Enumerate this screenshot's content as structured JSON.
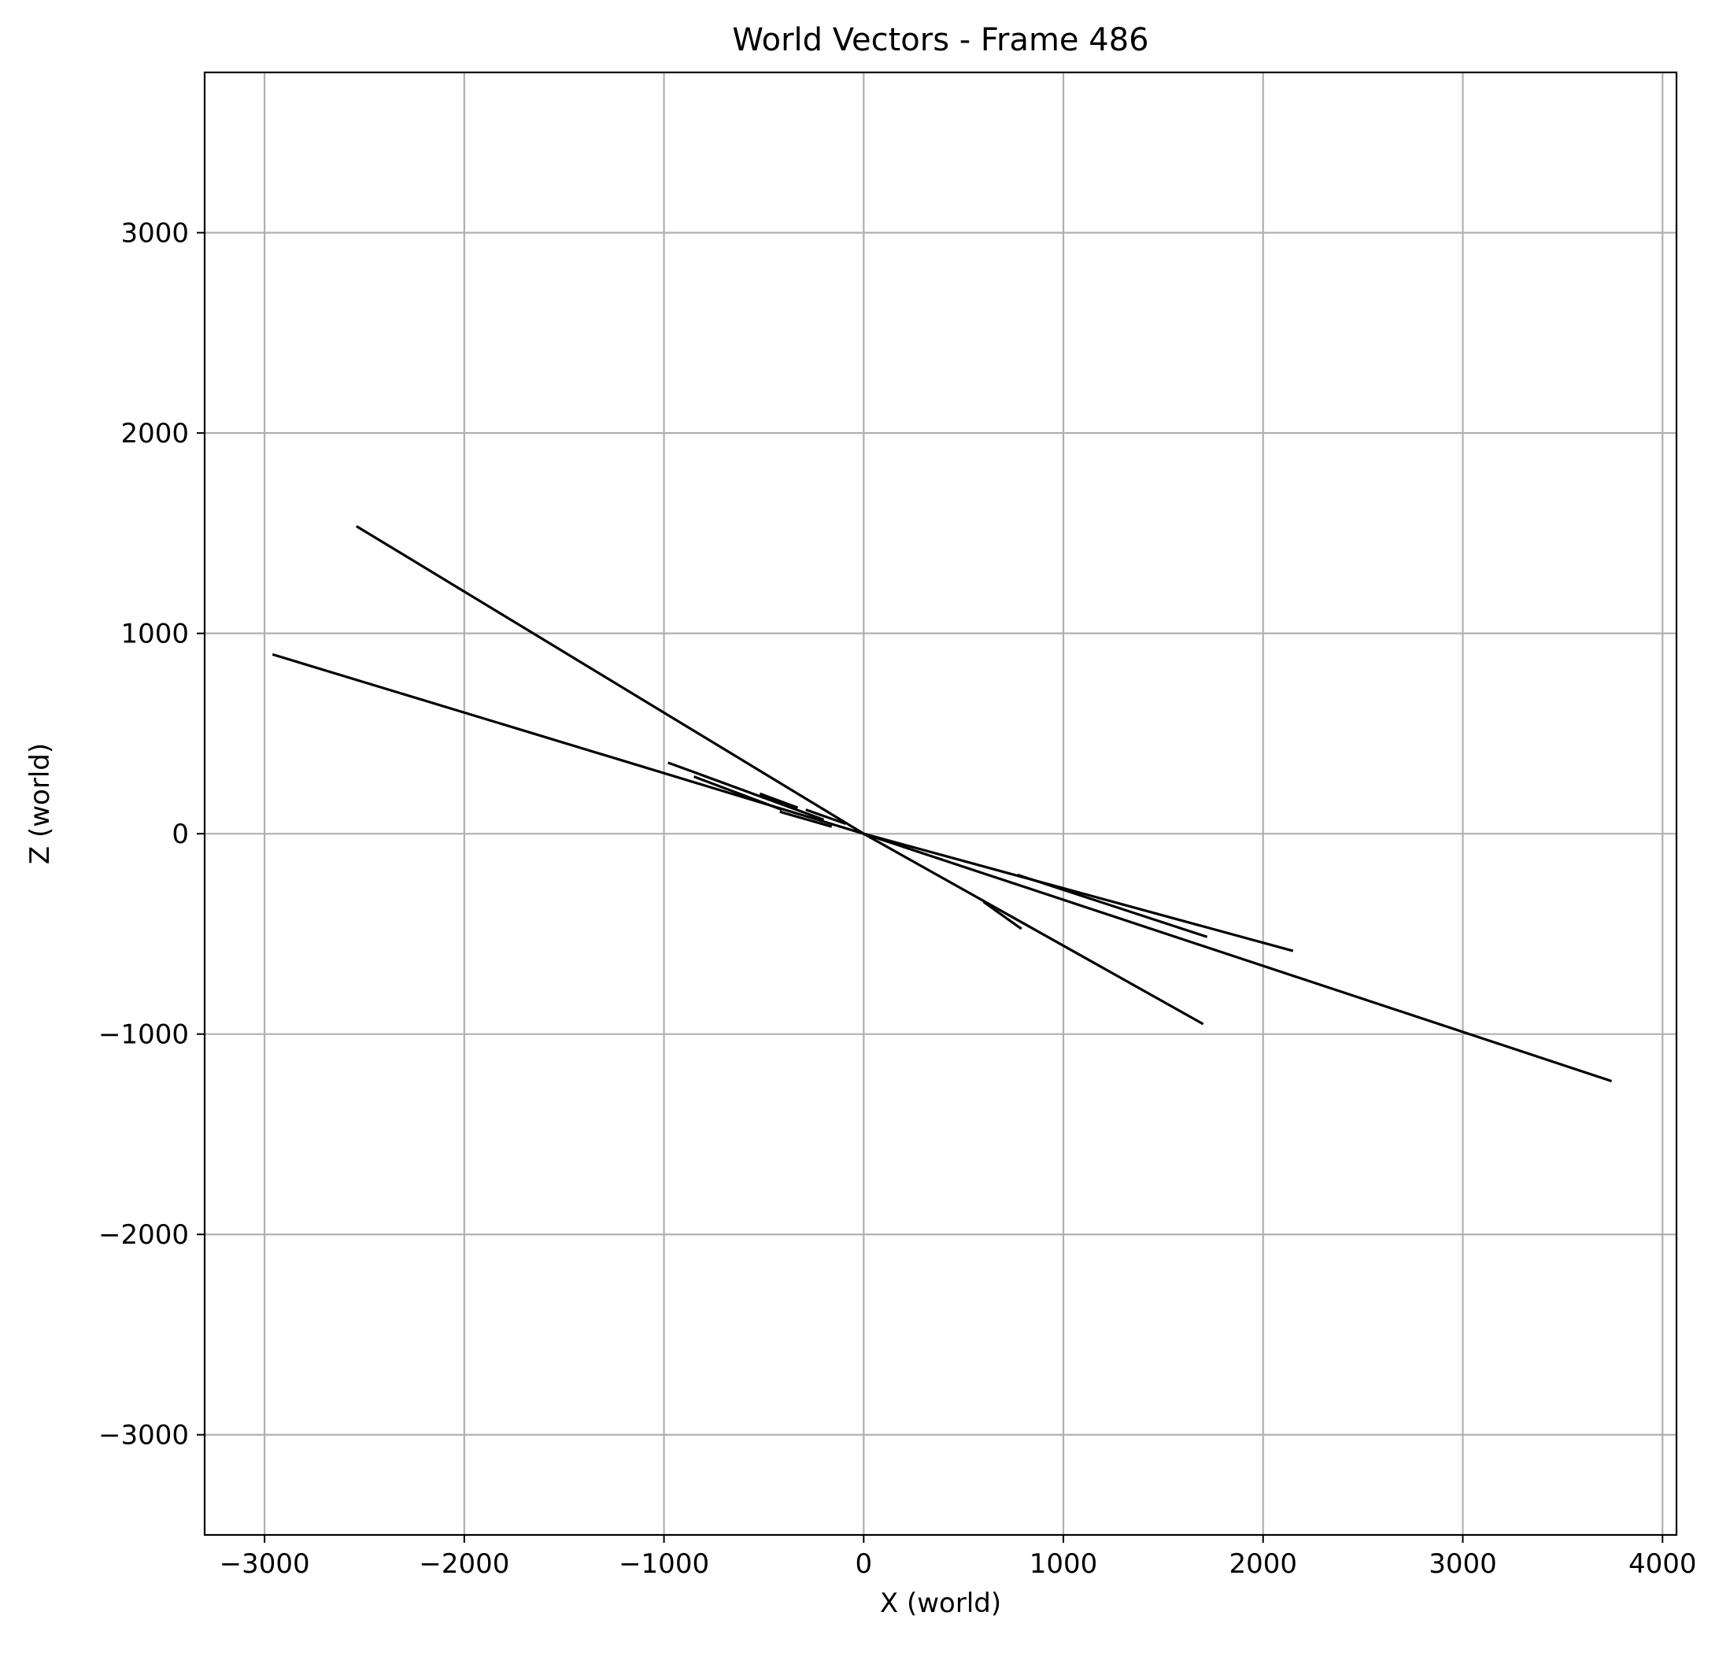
{
  "chart_data": {
    "type": "line",
    "title": "World Vectors - Frame 486",
    "xlabel": "X (world)",
    "ylabel": "Z (world)",
    "xlim": [
      -3300,
      4070
    ],
    "ylim": [
      -3500,
      3800
    ],
    "x_ticks": [
      -3000,
      -2000,
      -1000,
      0,
      1000,
      2000,
      3000,
      4000
    ],
    "y_ticks": [
      -3000,
      -2000,
      -1000,
      0,
      1000,
      2000,
      3000
    ],
    "x_tick_labels": [
      "−3000",
      "−2000",
      "−1000",
      "0",
      "1000",
      "2000",
      "3000",
      "4000"
    ],
    "y_tick_labels": [
      "−3000",
      "−2000",
      "−1000",
      "0",
      "1000",
      "2000",
      "3000"
    ],
    "grid": true,
    "legend": false,
    "line_color": "#000000",
    "vectors": [
      {
        "x0": 0,
        "z0": 0,
        "x1": -2540,
        "z1": 1535
      },
      {
        "x0": 0,
        "z0": 0,
        "x1": -2960,
        "z1": 895
      },
      {
        "x0": 0,
        "z0": 0,
        "x1": 3745,
        "z1": -1235
      },
      {
        "x0": 0,
        "z0": 0,
        "x1": 1700,
        "z1": -950
      },
      {
        "x0": 0,
        "z0": 0,
        "x1": 2150,
        "z1": -585
      },
      {
        "x0": 770,
        "z0": -205,
        "x1": 1720,
        "z1": -515
      },
      {
        "x0": 600,
        "z0": -340,
        "x1": 790,
        "z1": -475
      },
      {
        "x0": -980,
        "z0": 355,
        "x1": -200,
        "z1": 70
      },
      {
        "x0": -850,
        "z0": 285,
        "x1": -410,
        "z1": 120
      },
      {
        "x0": -520,
        "z0": 200,
        "x1": -330,
        "z1": 130
      },
      {
        "x0": -290,
        "z0": 120,
        "x1": -90,
        "z1": 50
      },
      {
        "x0": -420,
        "z0": 110,
        "x1": -160,
        "z1": 35
      }
    ]
  }
}
